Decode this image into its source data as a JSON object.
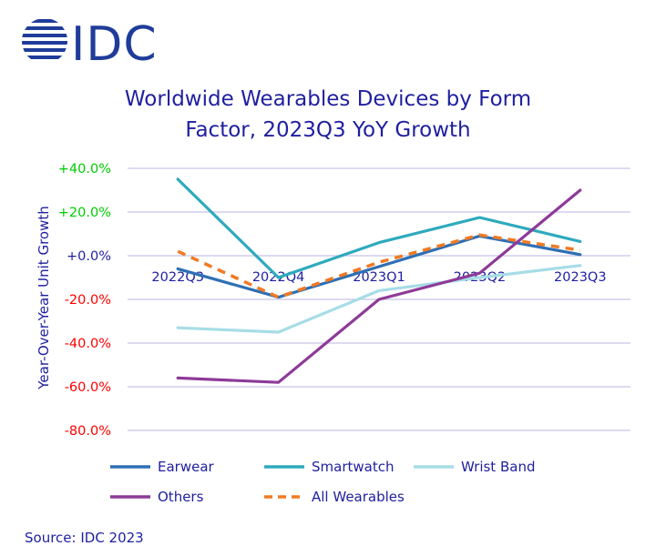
{
  "brand": {
    "name": "IDC",
    "color": "#1f3c9a",
    "logo_icon": "idc-globe-icon"
  },
  "source_note": "Source: IDC 2023",
  "colors": {
    "title": "#1f1fa0",
    "positive_tick": "#00cc00",
    "negative_tick": "#ff0000",
    "zero_tick": "#1f1fa0",
    "grid": "#c8c4e6"
  },
  "chart_data": {
    "type": "line",
    "title": "Worldwide Wearables Devices by Form Factor, 2023Q3 YoY Growth",
    "title_lines": [
      "Worldwide Wearables Devices by Form",
      "Factor, 2023Q3 YoY Growth"
    ],
    "xlabel": "",
    "ylabel": "Year-Over-Year Unit Growth",
    "categories": [
      "2022Q3",
      "2022Q4",
      "2023Q1",
      "2023Q2",
      "2023Q3"
    ],
    "ylim": [
      -80,
      40
    ],
    "yticks": [
      40,
      20,
      0,
      -20,
      -40,
      -60,
      -80
    ],
    "ytick_labels": [
      "+40.0%",
      "+20.0%",
      "+0.0%",
      "-20.0%",
      "-40.0%",
      "-60.0%",
      "-80.0%"
    ],
    "grid": true,
    "legend_position": "bottom",
    "series": [
      {
        "name": "Earwear",
        "color": "#2e6fb4",
        "dashed": false,
        "values": [
          -6,
          -19,
          -5,
          9,
          0.5
        ]
      },
      {
        "name": "Smartwatch",
        "color": "#2eaabd",
        "dashed": false,
        "values": [
          35,
          -10,
          6,
          17.5,
          6.5
        ]
      },
      {
        "name": "Wrist Band",
        "color": "#a6dde6",
        "dashed": false,
        "values": [
          -33,
          -35,
          -16,
          -10,
          -4.5
        ]
      },
      {
        "name": "Others",
        "color": "#8e3a98",
        "dashed": false,
        "values": [
          -56,
          -58,
          -20,
          -8,
          30
        ]
      },
      {
        "name": "All Wearables",
        "color": "#f07a24",
        "dashed": true,
        "values": [
          2,
          -19,
          -3,
          9.5,
          2.5
        ]
      }
    ]
  }
}
